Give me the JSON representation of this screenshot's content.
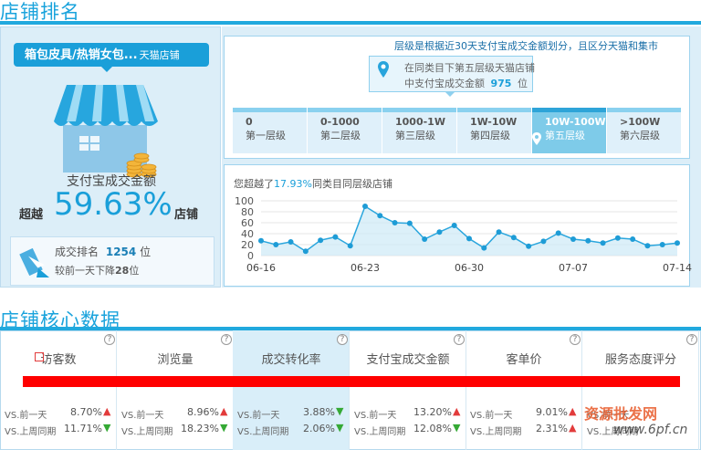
{
  "store_rank": {
    "section_title": "店铺排名",
    "category": {
      "name": "箱包皮具/热销女包...",
      "scope": "天猫店铺"
    },
    "payment_label": "支付宝成交金额",
    "beyond_prefix": "超越",
    "beyond_percent": "59.63%",
    "beyond_suffix": "店铺",
    "trade_rank_label": "成交排名",
    "trade_rank_value": "1254",
    "trade_rank_unit": "位",
    "compare_prefix": "较前一天下降",
    "compare_value": "28",
    "compare_unit": "位"
  },
  "tiers": {
    "note": "层级是根据近30天支付宝成交金额划分，且区分天猫和集市",
    "callout_line1": "在同类目下第五层级天猫店铺",
    "callout_line2_prefix": "中支付宝成交金额",
    "callout_line2_value": "975",
    "callout_line2_suffix": "位",
    "items": [
      {
        "range": "0",
        "name": "第一层级"
      },
      {
        "range": "0-1000",
        "name": "第二层级"
      },
      {
        "range": "1000-1W",
        "name": "第三层级"
      },
      {
        "range": "1W-10W",
        "name": "第四层级"
      },
      {
        "range": "10W-100W",
        "name": "第五层级"
      },
      {
        "range": ">100W",
        "name": "第六层级"
      }
    ],
    "active_index": 4
  },
  "trend": {
    "text_prefix": "您超越了",
    "text_value": "17.93%",
    "text_suffix": "同类目同层级店铺",
    "colors": {
      "line": "#2aa6dd",
      "fill": "#cde9f7",
      "point": "#1e9cd6"
    }
  },
  "chart_data": {
    "type": "area",
    "x": [
      "06-16",
      "06-17",
      "06-18",
      "06-19",
      "06-20",
      "06-21",
      "06-22",
      "06-23",
      "06-24",
      "06-25",
      "06-26",
      "06-27",
      "06-28",
      "06-29",
      "06-30",
      "07-01",
      "07-02",
      "07-03",
      "07-04",
      "07-05",
      "07-06",
      "07-07",
      "07-08",
      "07-09",
      "07-10",
      "07-11",
      "07-12",
      "07-13",
      "07-14"
    ],
    "y": [
      27,
      20,
      25,
      8,
      28,
      34,
      18,
      90,
      73,
      60,
      59,
      30,
      43,
      55,
      31,
      14,
      43,
      33,
      17,
      26,
      41,
      30,
      27,
      23,
      32,
      30,
      18,
      20,
      23
    ],
    "x_ticks": [
      "06-16",
      "06-23",
      "06-30",
      "07-07",
      "07-14"
    ],
    "y_ticks": [
      0,
      20,
      40,
      60,
      80,
      100
    ],
    "ylim": [
      0,
      100
    ],
    "grid": true
  },
  "core": {
    "section_title": "店铺核心数据",
    "help": "?",
    "cmp_labels": [
      "VS.前一天",
      "VS.上周同期"
    ],
    "columns": [
      {
        "title": "访客数",
        "has_icon": true,
        "v1": "8.70%",
        "d1": "up",
        "v2": "11.71%",
        "d2": "down"
      },
      {
        "title": "浏览量",
        "has_icon": false,
        "v1": "8.96%",
        "d1": "up",
        "v2": "18.23%",
        "d2": "down"
      },
      {
        "title": "成交转化率",
        "has_icon": false,
        "v1": "3.88%",
        "d1": "down",
        "v2": "2.06%",
        "d2": "down"
      },
      {
        "title": "支付宝成交金额",
        "has_icon": false,
        "v1": "13.20%",
        "d1": "up",
        "v2": "12.08%",
        "d2": "down"
      },
      {
        "title": "客单价",
        "has_icon": false,
        "v1": "9.01%",
        "d1": "up",
        "v2": "2.31%",
        "d2": "up"
      },
      {
        "title": "服务态度评分",
        "has_icon": false,
        "v1": "",
        "d1": "",
        "v2": "",
        "d2": ""
      }
    ]
  },
  "watermark": {
    "line1": "资源批发网",
    "line2": "www.6pf.cn"
  }
}
